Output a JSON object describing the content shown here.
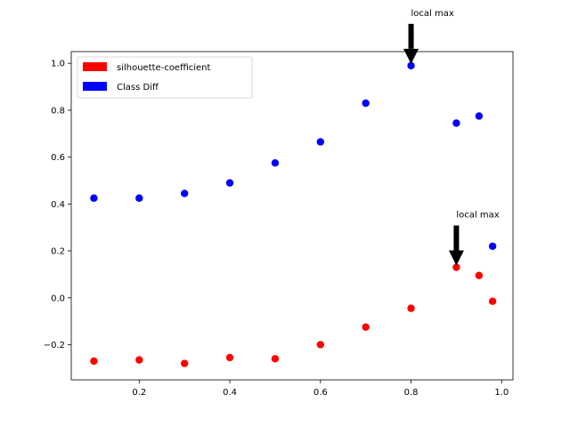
{
  "chart_data": {
    "type": "scatter",
    "xlim": [
      0.05,
      1.025
    ],
    "ylim": [
      -0.35,
      1.05
    ],
    "x_ticks": [
      0.2,
      0.4,
      0.6,
      0.8,
      1.0
    ],
    "x_tick_labels": [
      "0.2",
      "0.4",
      "0.6",
      "0.8",
      "1.0"
    ],
    "y_ticks": [
      -0.2,
      0.0,
      0.2,
      0.4,
      0.6,
      0.8,
      1.0
    ],
    "y_tick_labels": [
      "−0.2",
      "0.0",
      "0.2",
      "0.4",
      "0.6",
      "0.8",
      "1.0"
    ],
    "grid": false,
    "legend_position": "upper-left",
    "series": [
      {
        "name": "silhouette-coefficient",
        "color": "#ff0000",
        "x": [
          0.1,
          0.2,
          0.3,
          0.4,
          0.5,
          0.6,
          0.7,
          0.8,
          0.9,
          0.95,
          0.98
        ],
        "y": [
          -0.27,
          -0.265,
          -0.28,
          -0.255,
          -0.26,
          -0.2,
          -0.125,
          -0.045,
          0.13,
          0.095,
          -0.015
        ]
      },
      {
        "name": "Class Diff",
        "color": "#0000ff",
        "x": [
          0.1,
          0.2,
          0.3,
          0.4,
          0.5,
          0.6,
          0.7,
          0.8,
          0.9,
          0.95,
          0.98
        ],
        "y": [
          0.425,
          0.425,
          0.445,
          0.49,
          0.575,
          0.665,
          0.83,
          0.99,
          0.745,
          0.775,
          0.22
        ]
      }
    ],
    "annotations": [
      {
        "text": "local max",
        "x": 0.8,
        "y": 0.99
      },
      {
        "text": "local max",
        "x": 0.9,
        "y": 0.13
      }
    ]
  }
}
